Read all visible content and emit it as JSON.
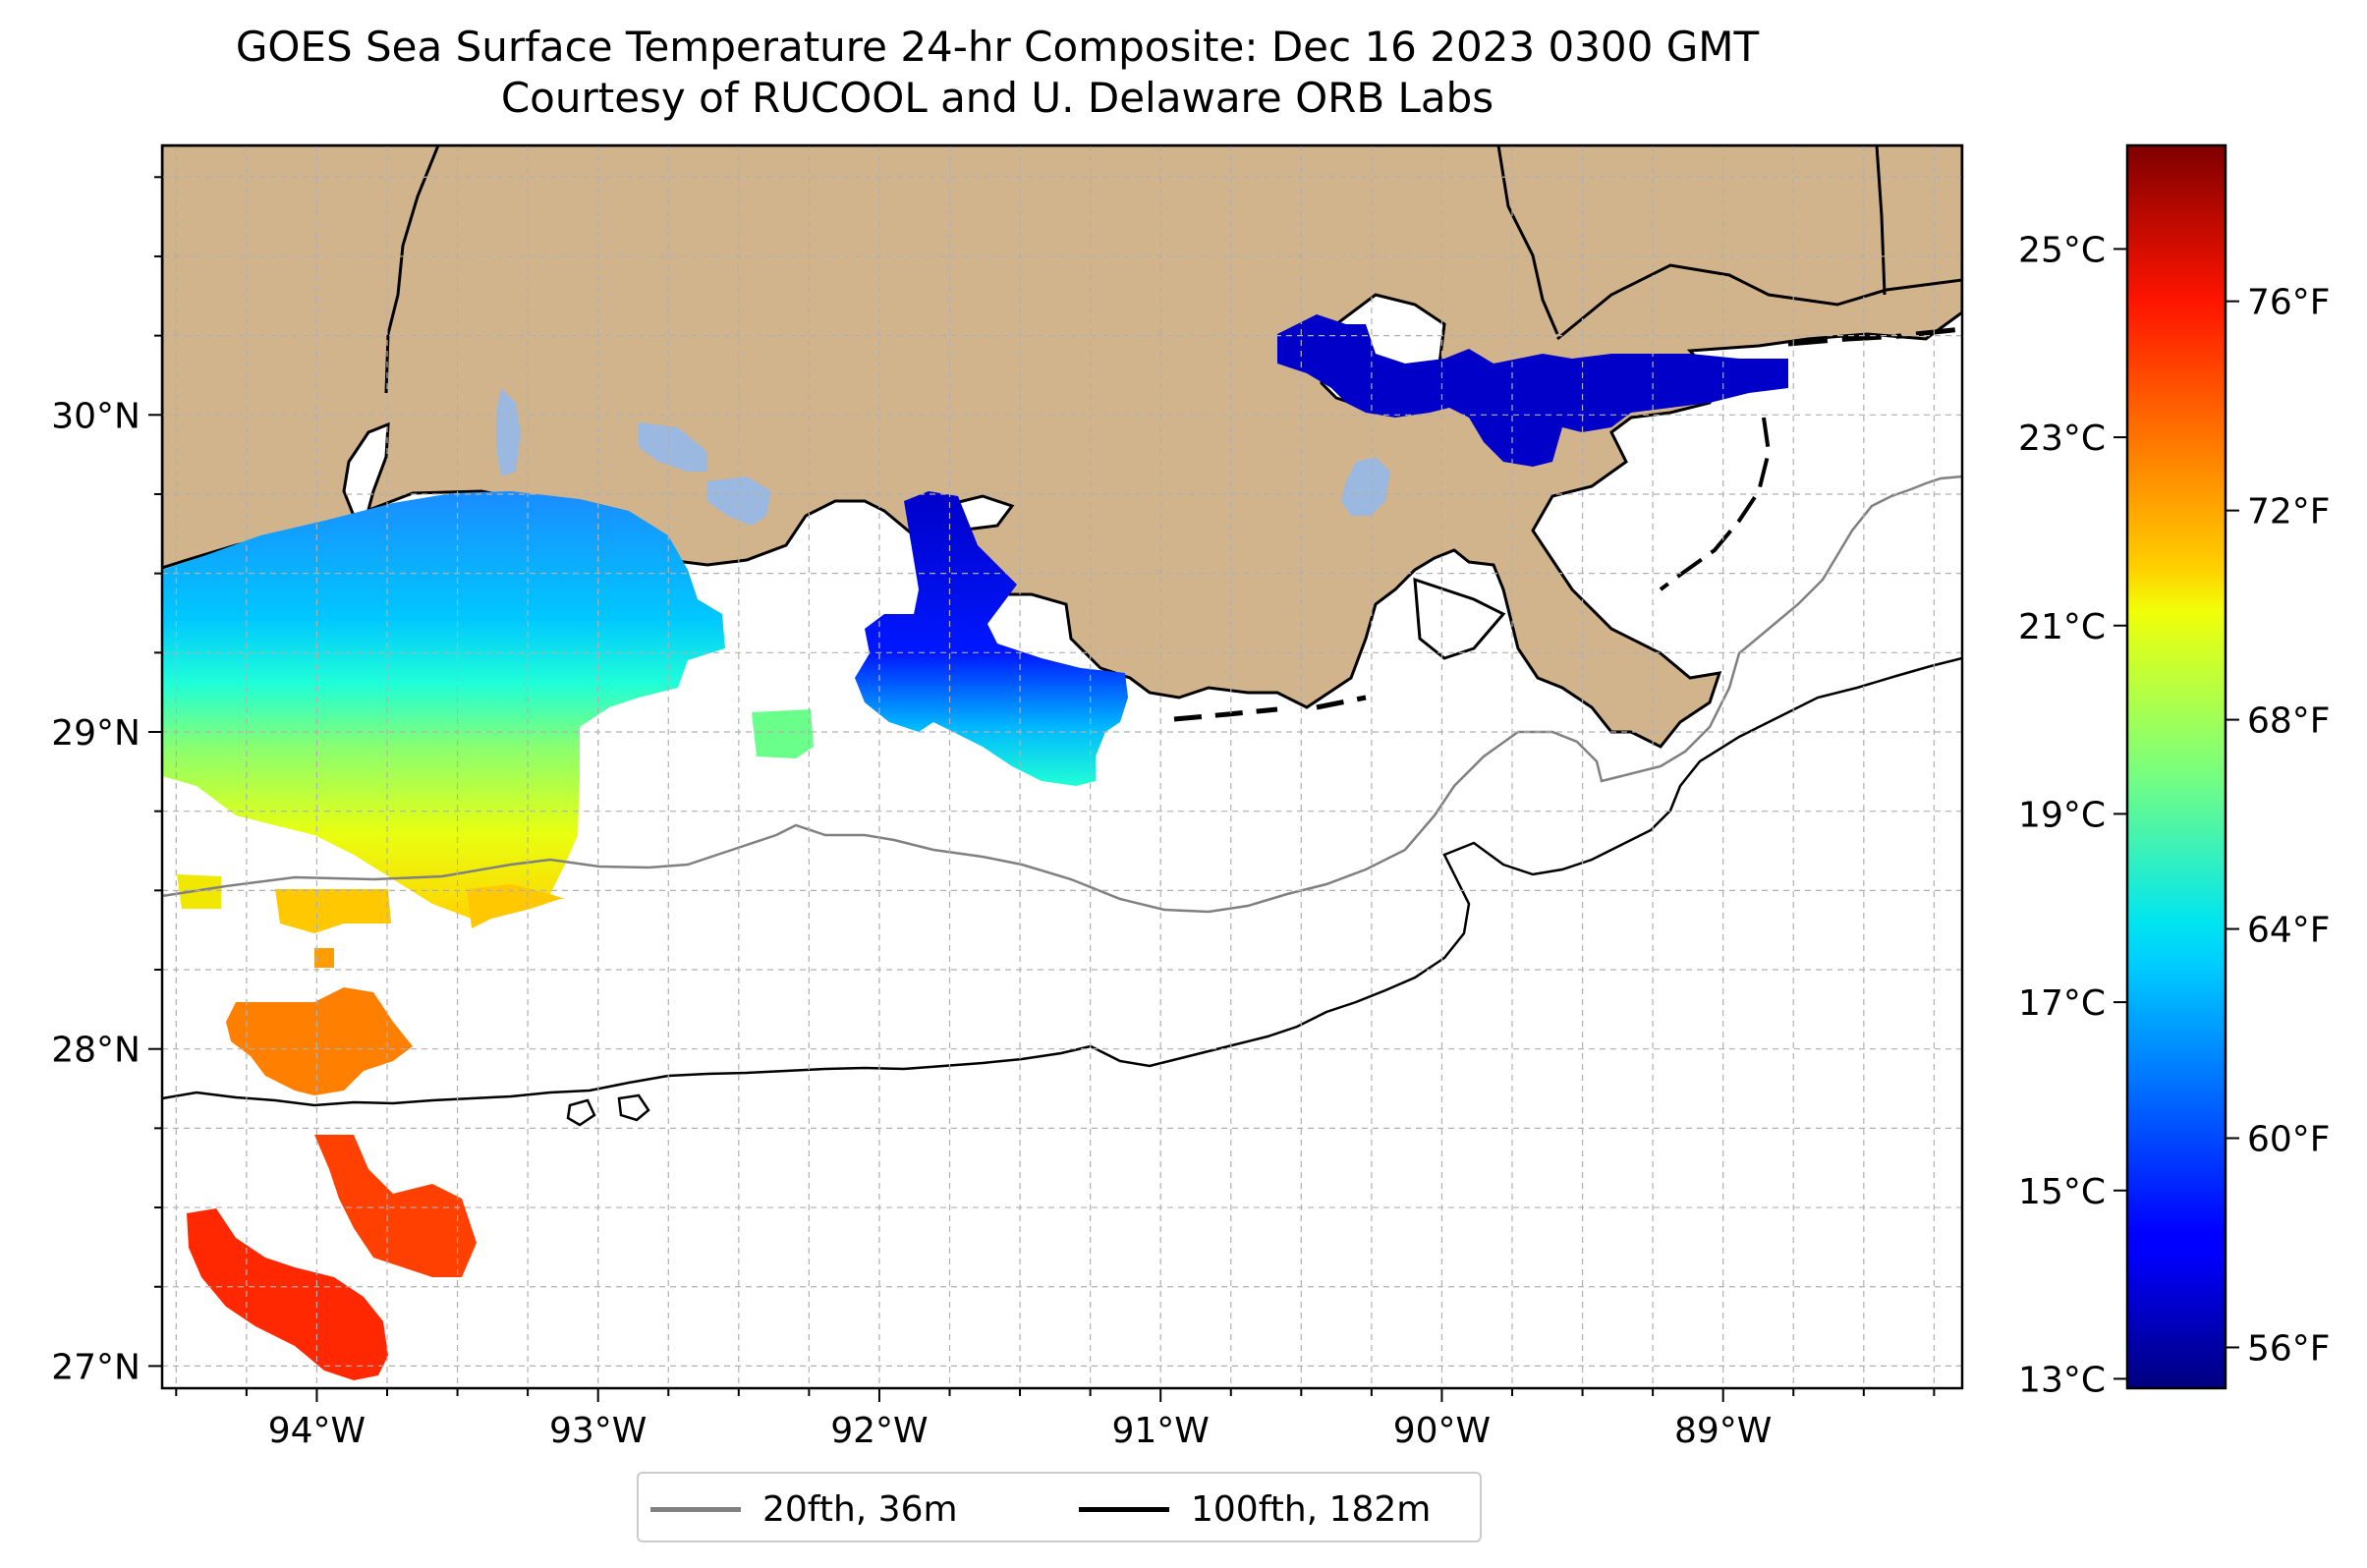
{
  "title": {
    "line1": "GOES Sea Surface Temperature 24-hr Composite: Dec 16 2023 0300 GMT",
    "line2": "Courtesy of RUCOOL and U. Delaware ORB Labs"
  },
  "map": {
    "lon_range": [
      -94.55,
      -88.15
    ],
    "lat_range": [
      26.93,
      30.85
    ],
    "land_color": "#d2b48c",
    "water_color": "#ffffff",
    "cloud_color": "#9ab8e0",
    "lat_ticks": [
      {
        "value": 30,
        "label": "30°N"
      },
      {
        "value": 29,
        "label": "29°N"
      },
      {
        "value": 28,
        "label": "28°N"
      },
      {
        "value": 27,
        "label": "27°N"
      }
    ],
    "lon_ticks": [
      {
        "value": -94,
        "label": "94°W"
      },
      {
        "value": -93,
        "label": "93°W"
      },
      {
        "value": -92,
        "label": "92°W"
      },
      {
        "value": -91,
        "label": "91°W"
      },
      {
        "value": -90,
        "label": "90°W"
      },
      {
        "value": -89,
        "label": "89°W"
      }
    ],
    "grid": true
  },
  "colorbar": {
    "colormap": "jet",
    "range_c": [
      12.9,
      26.1
    ],
    "celsius_ticks": [
      {
        "value": 25,
        "label": "25°C"
      },
      {
        "value": 23,
        "label": "23°C"
      },
      {
        "value": 21,
        "label": "21°C"
      },
      {
        "value": 19,
        "label": "19°C"
      },
      {
        "value": 17,
        "label": "17°C"
      },
      {
        "value": 15,
        "label": "15°C"
      },
      {
        "value": 13,
        "label": "13°C"
      }
    ],
    "fahrenheit_ticks": [
      {
        "value": 76,
        "label": "76°F"
      },
      {
        "value": 72,
        "label": "72°F"
      },
      {
        "value": 68,
        "label": "68°F"
      },
      {
        "value": 64,
        "label": "64°F"
      },
      {
        "value": 60,
        "label": "60°F"
      },
      {
        "value": 56,
        "label": "56°F"
      }
    ]
  },
  "legend": {
    "items": [
      {
        "label": "20fth, 36m",
        "color": "#808080"
      },
      {
        "label": "100fth, 182m",
        "color": "#000000"
      }
    ]
  }
}
